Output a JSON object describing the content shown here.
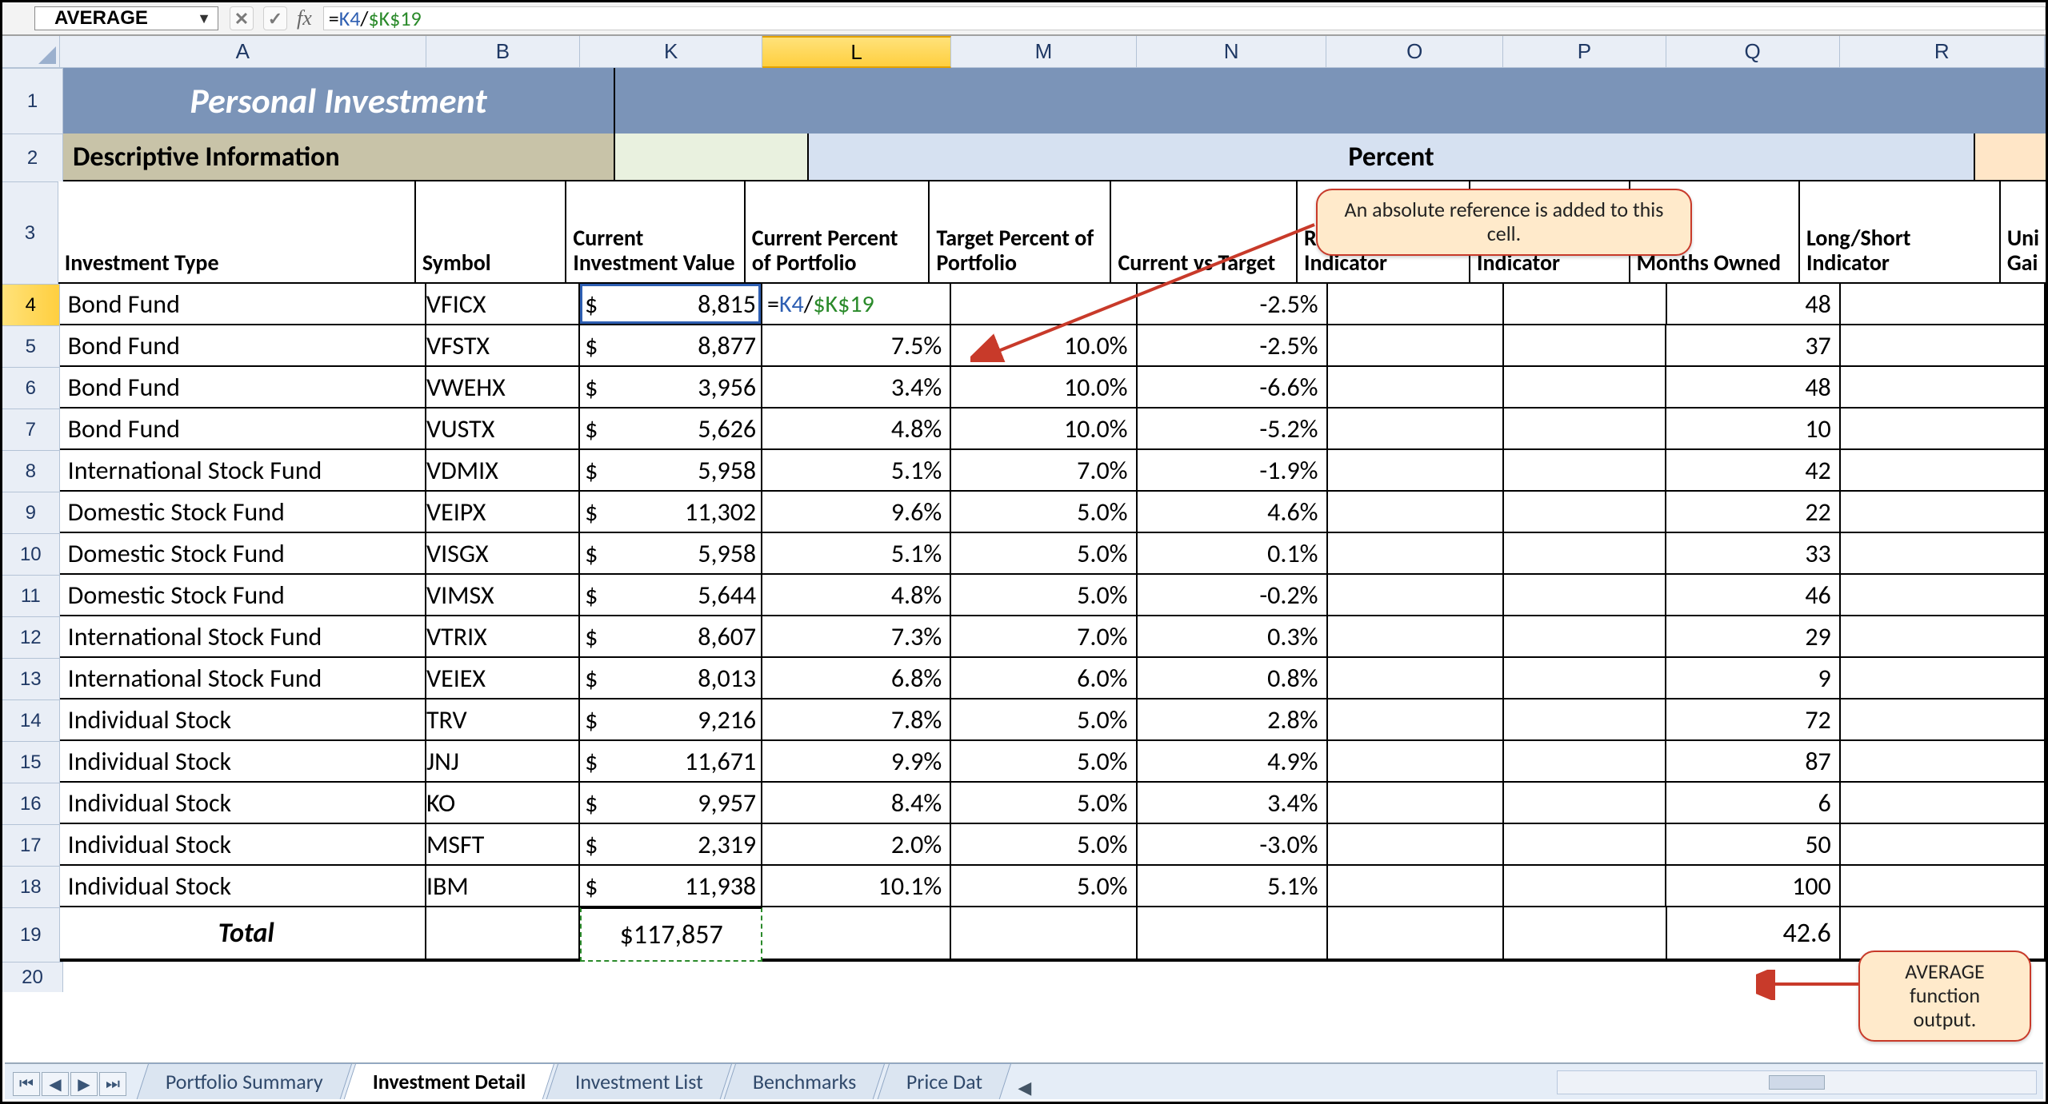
{
  "formula_bar": {
    "name_box": "AVERAGE",
    "cancel_icon": "✕",
    "enter_icon": "✓",
    "fx_label": "fx",
    "formula_prefix": "=",
    "formula_k4": "K4",
    "formula_slash": "/",
    "formula_abs": "$K$19"
  },
  "columns": {
    "A": "A",
    "B": "B",
    "K": "K",
    "L": "L",
    "M": "M",
    "N": "N",
    "O": "O",
    "P": "P",
    "Q": "Q",
    "R": "R"
  },
  "row_numbers": [
    "1",
    "2",
    "3",
    "4",
    "5",
    "6",
    "7",
    "8",
    "9",
    "10",
    "11",
    "12",
    "13",
    "14",
    "15",
    "16",
    "17",
    "18",
    "19",
    "20"
  ],
  "title": "Personal Investment",
  "section_headers": {
    "descriptive": "Descriptive Information",
    "percent": "Percent"
  },
  "col_labels": {
    "A": "Investment Type",
    "B": "Symbol",
    "K": "Current Investment Value",
    "L": "Current Percent of Portfolio",
    "M": "Target Percent of Portfolio",
    "N": "Current vs Target",
    "O": "Rebalance Indicator",
    "P": "Buy/Sell Indicator",
    "Q": "Months Owned",
    "R": "Long/Short Indicator",
    "S": "Uni Gai"
  },
  "editing_formula": {
    "prefix": "=",
    "k4": "K4",
    "slash": "/",
    "abs": "$K$19"
  },
  "rows": [
    {
      "A": "Bond Fund",
      "B": "VFICX",
      "K": "8,815",
      "L": "",
      "M": "",
      "N": "-2.5%",
      "Q": "48"
    },
    {
      "A": "Bond Fund",
      "B": "VFSTX",
      "K": "8,877",
      "L": "7.5%",
      "M": "10.0%",
      "N": "-2.5%",
      "Q": "37"
    },
    {
      "A": "Bond Fund",
      "B": "VWEHX",
      "K": "3,956",
      "L": "3.4%",
      "M": "10.0%",
      "N": "-6.6%",
      "Q": "48"
    },
    {
      "A": "Bond Fund",
      "B": "VUSTX",
      "K": "5,626",
      "L": "4.8%",
      "M": "10.0%",
      "N": "-5.2%",
      "Q": "10"
    },
    {
      "A": "International Stock Fund",
      "B": "VDMIX",
      "K": "5,958",
      "L": "5.1%",
      "M": "7.0%",
      "N": "-1.9%",
      "Q": "42"
    },
    {
      "A": "Domestic Stock Fund",
      "B": "VEIPX",
      "K": "11,302",
      "L": "9.6%",
      "M": "5.0%",
      "N": "4.6%",
      "Q": "22"
    },
    {
      "A": "Domestic Stock Fund",
      "B": "VISGX",
      "K": "5,958",
      "L": "5.1%",
      "M": "5.0%",
      "N": "0.1%",
      "Q": "33"
    },
    {
      "A": "Domestic Stock Fund",
      "B": "VIMSX",
      "K": "5,644",
      "L": "4.8%",
      "M": "5.0%",
      "N": "-0.2%",
      "Q": "46"
    },
    {
      "A": "International Stock Fund",
      "B": "VTRIX",
      "K": "8,607",
      "L": "7.3%",
      "M": "7.0%",
      "N": "0.3%",
      "Q": "29"
    },
    {
      "A": "International Stock Fund",
      "B": "VEIEX",
      "K": "8,013",
      "L": "6.8%",
      "M": "6.0%",
      "N": "0.8%",
      "Q": "9"
    },
    {
      "A": "Individual Stock",
      "B": "TRV",
      "K": "9,216",
      "L": "7.8%",
      "M": "5.0%",
      "N": "2.8%",
      "Q": "72"
    },
    {
      "A": "Individual Stock",
      "B": "JNJ",
      "K": "11,671",
      "L": "9.9%",
      "M": "5.0%",
      "N": "4.9%",
      "Q": "87"
    },
    {
      "A": "Individual Stock",
      "B": "KO",
      "K": "9,957",
      "L": "8.4%",
      "M": "5.0%",
      "N": "3.4%",
      "Q": "6"
    },
    {
      "A": "Individual Stock",
      "B": "MSFT",
      "K": "2,319",
      "L": "2.0%",
      "M": "5.0%",
      "N": "-3.0%",
      "Q": "50"
    },
    {
      "A": "Individual Stock",
      "B": "IBM",
      "K": "11,938",
      "L": "10.1%",
      "M": "5.0%",
      "N": "5.1%",
      "Q": "100"
    }
  ],
  "total": {
    "label": "Total",
    "K": "$117,857",
    "Q": "42.6"
  },
  "tabs": {
    "items": [
      "Portfolio Summary",
      "Investment Detail",
      "Investment List",
      "Benchmarks",
      "Price Data"
    ],
    "active_index": 1
  },
  "callouts": {
    "abs_ref": "An absolute reference is added to this cell.",
    "avg_out": "AVERAGE function output."
  },
  "colors": {
    "title_bg": "#7b94b8",
    "title_fg": "#ffffff",
    "desc_bg": "#c8c3a8",
    "k2_bg": "#e9f1df",
    "pct_bg": "#d6e1f1",
    "far_bg": "#ffe6c7",
    "colhdr_bg": "#e9eef6",
    "colhdr_fg": "#1f3864",
    "active_hdr_bg": "#ffd96b",
    "formula_k_fg": "#2e5fb2",
    "formula_abs_fg": "#2a8a2a",
    "callout_bg": "#ffeacb",
    "callout_border": "#c83a2a",
    "grid_border": "#000000"
  }
}
